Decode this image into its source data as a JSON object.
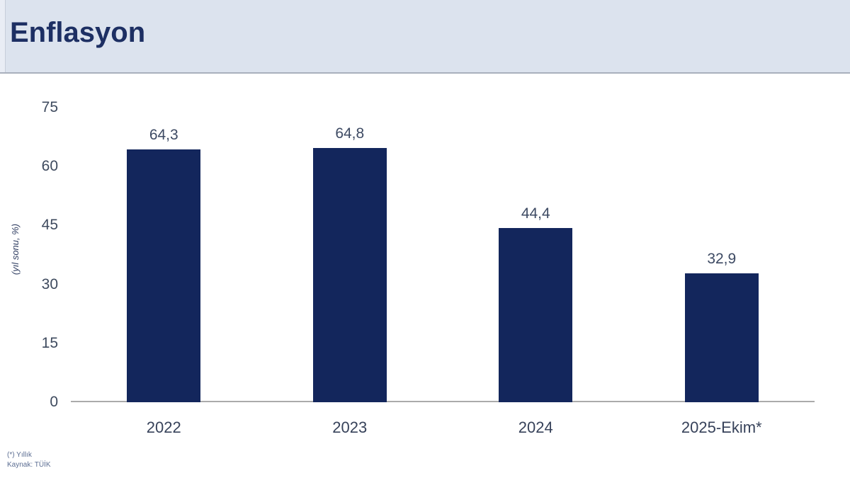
{
  "header": {
    "title": "Enflasyon"
  },
  "footer": {
    "note1": "(*) Yıllık",
    "note2": "Kaynak: TÜİK"
  },
  "colors": {
    "header_bg": "#dce3ee",
    "title_text": "#1d2f63",
    "bar": "#13265c",
    "axis_line": "#ababab",
    "tick_text": "#3e4a5e"
  },
  "chart_data": {
    "type": "bar",
    "title": "Enflasyon",
    "categories": [
      "2022",
      "2023",
      "2024",
      "2025-Ekim*"
    ],
    "values": [
      64.3,
      64.8,
      44.4,
      32.9
    ],
    "value_labels": [
      "64,3",
      "64,8",
      "44,4",
      "32,9"
    ],
    "xlabel": "",
    "ylabel": "(yıl sonu, %)",
    "ylim": [
      0,
      75
    ],
    "yticks": [
      0,
      15,
      30,
      45,
      60,
      75
    ],
    "grid": false,
    "legend": false,
    "footnote": "(*) Yıllık",
    "source_note": "Kaynak: TÜİK"
  }
}
